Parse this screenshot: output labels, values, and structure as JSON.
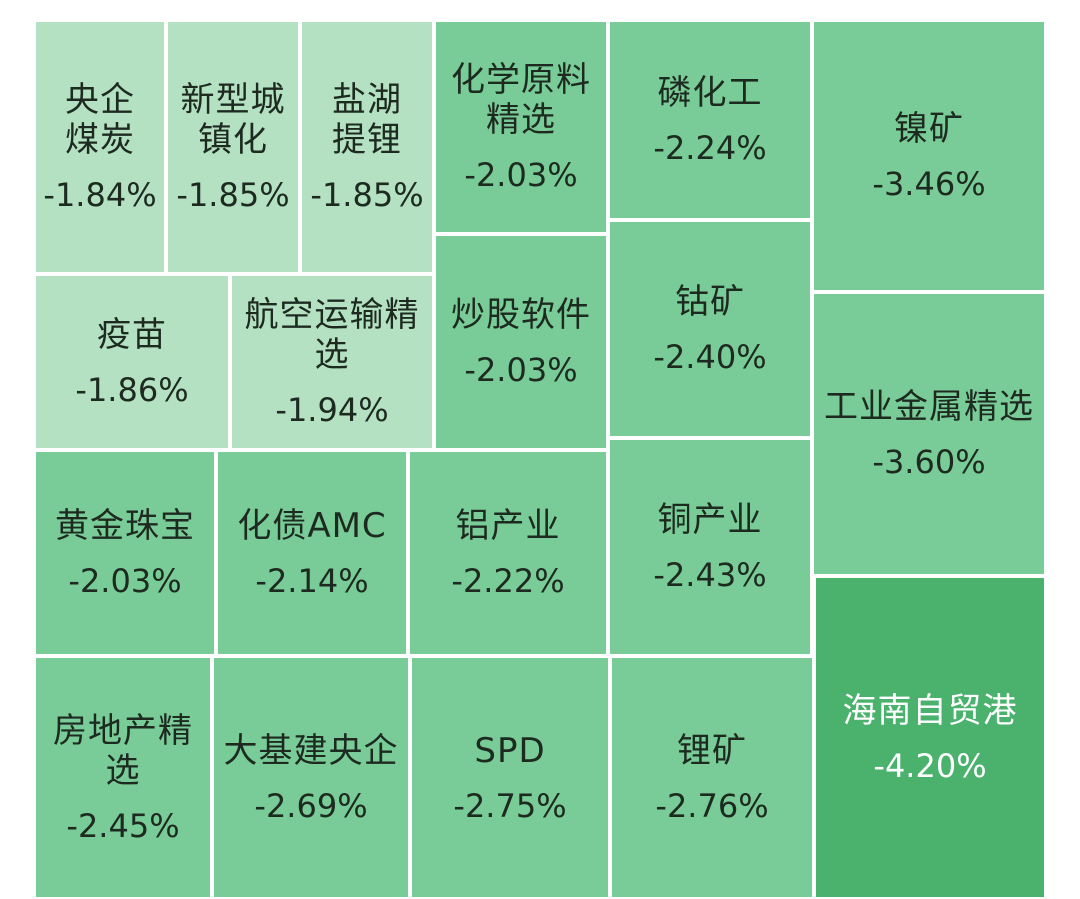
{
  "chart_data": {
    "type": "treemap",
    "items": [
      {
        "name": "央企煤炭",
        "change": "-1.84%",
        "value": -1.84,
        "color": "#b5e1c3"
      },
      {
        "name": "新型城镇化",
        "change": "-1.85%",
        "value": -1.85,
        "color": "#b5e1c3"
      },
      {
        "name": "盐湖提锂",
        "change": "-1.85%",
        "value": -1.85,
        "color": "#b5e1c3"
      },
      {
        "name": "化学原料精选",
        "change": "-2.03%",
        "value": -2.03,
        "color": "#79cb97"
      },
      {
        "name": "磷化工",
        "change": "-2.24%",
        "value": -2.24,
        "color": "#79cb97"
      },
      {
        "name": "镍矿",
        "change": "-3.46%",
        "value": -3.46,
        "color": "#79cb97"
      },
      {
        "name": "疫苗",
        "change": "-1.86%",
        "value": -1.86,
        "color": "#b5e1c3"
      },
      {
        "name": "航空运输精选",
        "change": "-1.94%",
        "value": -1.94,
        "color": "#b5e1c3"
      },
      {
        "name": "炒股软件",
        "change": "-2.03%",
        "value": -2.03,
        "color": "#79cb97"
      },
      {
        "name": "钴矿",
        "change": "-2.40%",
        "value": -2.4,
        "color": "#79cb97"
      },
      {
        "name": "工业金属精选",
        "change": "-3.60%",
        "value": -3.6,
        "color": "#79cb97"
      },
      {
        "name": "黄金珠宝",
        "change": "-2.03%",
        "value": -2.03,
        "color": "#79cb97"
      },
      {
        "name": "化债AMC",
        "change": "-2.14%",
        "value": -2.14,
        "color": "#79cb97"
      },
      {
        "name": "铝产业",
        "change": "-2.22%",
        "value": -2.22,
        "color": "#79cb97"
      },
      {
        "name": "铜产业",
        "change": "-2.43%",
        "value": -2.43,
        "color": "#79cb97"
      },
      {
        "name": "房地产精选",
        "change": "-2.45%",
        "value": -2.45,
        "color": "#79cb97"
      },
      {
        "name": "大基建央企",
        "change": "-2.69%",
        "value": -2.69,
        "color": "#79cb97"
      },
      {
        "name": "SPD",
        "change": "-2.75%",
        "value": -2.75,
        "color": "#79cb97"
      },
      {
        "name": "锂矿",
        "change": "-2.76%",
        "value": -2.76,
        "color": "#79cb97"
      },
      {
        "name": "海南自贸港",
        "change": "-4.20%",
        "value": -4.2,
        "color": "#4bb26e",
        "text_color": "#ffffff"
      }
    ]
  }
}
